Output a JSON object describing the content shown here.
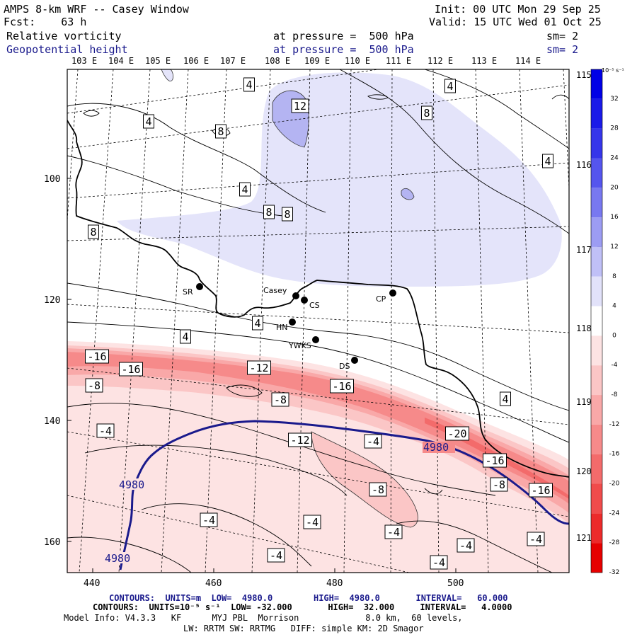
{
  "header": {
    "title": "AMPS 8-km WRF -- Casey Window",
    "forecast": "Fcst:    63 h",
    "init": "Init: 00 UTC Mon 29 Sep 25",
    "valid": "Valid: 15 UTC Wed 01 Oct 25",
    "field1_name": "Relative vorticity",
    "field1_level": "at pressure =  500 hPa",
    "field1_smooth": "sm= 2",
    "field2_name": "Geopotential height",
    "field2_level": "at pressure =  500 hPa",
    "field2_smooth": "sm= 2"
  },
  "map": {
    "x_ticks": [
      "440",
      "460",
      "480",
      "500"
    ],
    "y_ticks": [
      "100",
      "120",
      "140",
      "160"
    ],
    "lon_top_labels": [
      "103 E",
      "104 E",
      "105 E",
      "106 E",
      "107 E",
      "108 E",
      "109 E",
      "110 E",
      "111 E",
      "112 E",
      "113 E",
      "114 E"
    ],
    "lon_right_labels": [
      "115 E",
      "116 E",
      "117 E",
      "118 E",
      "119 E",
      "120 E",
      "121 E"
    ],
    "stations": [
      {
        "name": "SR"
      },
      {
        "name": "Casey"
      },
      {
        "name": "CS"
      },
      {
        "name": "HN"
      },
      {
        "name": "YWKS"
      },
      {
        "name": "DS"
      },
      {
        "name": "CP"
      }
    ],
    "vorticity_labels": [
      "4",
      "12",
      "4",
      "8",
      "4",
      "8",
      "4",
      "4",
      "8",
      "8",
      "8",
      "4",
      "4",
      "-16",
      "-16",
      "-12",
      "-8",
      "-16",
      "-8",
      "4",
      "-4",
      "-12",
      "-4",
      "-20",
      "-16",
      "-8",
      "-16",
      "-8",
      "-4",
      "-4",
      "-4",
      "-4",
      "-4",
      "-4",
      "-4"
    ],
    "height_labels": [
      "4980",
      "4980",
      "4980"
    ]
  },
  "colorbar": {
    "unit": "10⁻⁵ s⁻¹",
    "labels": [
      "32",
      "28",
      "24",
      "20",
      "16",
      "12",
      "8",
      "4",
      "0",
      "-4",
      "-8",
      "-12",
      "-16",
      "-20",
      "-24",
      "-28",
      "-32"
    ],
    "colors": [
      "#0000e6",
      "#1a1ae8",
      "#3535ea",
      "#5555ee",
      "#7878f0",
      "#9c9cf3",
      "#c0c0f7",
      "#e2e2fa",
      "#ffffff",
      "#fde3e3",
      "#fbc6c6",
      "#f9a8a8",
      "#f68a8a",
      "#f36b6b",
      "#f04b4b",
      "#ec2a2a",
      "#e60000"
    ]
  },
  "footer": {
    "line1": "CONTOURS:  UNITS=m  LOW=  4980.0        HIGH=  4980.0       INTERVAL=   60.000",
    "line2": "CONTOURS:  UNITS=10⁻⁵ s⁻¹  LOW= -32.000       HIGH=  32.000     INTERVAL=   4.0000",
    "line3": "Model Info: V4.3.3   KF      MYJ PBL  Morrison             8.0 km,  60 levels,",
    "line4": "LW: RRTM SW: RRTMG   DIFF: simple KM: 2D Smagor"
  }
}
